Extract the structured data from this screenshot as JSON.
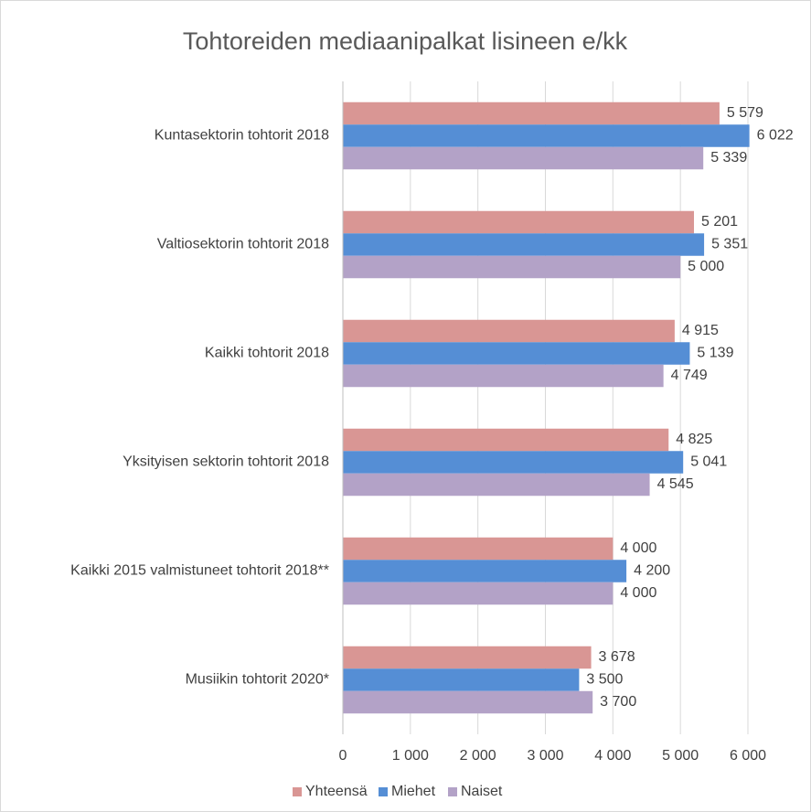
{
  "chart_data": {
    "type": "hbar",
    "title": "Tohtoreiden mediaanipalkat lisineen e/kk",
    "categories": [
      "Kuntasektorin tohtorit 2018",
      "Valtiosektorin tohtorit  2018",
      "Kaikki tohtorit 2018",
      "Yksityisen sektorin tohtorit 2018",
      "Kaikki 2015 valmistuneet tohtorit 2018**",
      "Musiikin tohtorit 2020*"
    ],
    "series": [
      {
        "name": "Yhteensä",
        "color": "#d99694",
        "values": [
          5579,
          5201,
          4915,
          4825,
          4000,
          3678
        ],
        "value_labels": [
          "5 579",
          "5 201",
          "4 915",
          "4 825",
          "4 000",
          "3 678"
        ]
      },
      {
        "name": "Miehet",
        "color": "#558ed5",
        "values": [
          6022,
          5351,
          5139,
          5041,
          4200,
          3500
        ],
        "value_labels": [
          "6 022",
          "5 351",
          "5 139",
          "5 041",
          "4 200",
          "3 500"
        ]
      },
      {
        "name": "Naiset",
        "color": "#b3a2c7",
        "values": [
          5339,
          5000,
          4749,
          4545,
          4000,
          3700
        ],
        "value_labels": [
          "5 339",
          "5 000",
          "4 749",
          "4 545",
          "4 000",
          "3 700"
        ]
      }
    ],
    "xlim": [
      0,
      6000
    ],
    "xticks": [
      0,
      {
        "value": 1000,
        "label": "1 000"
      },
      {
        "value": 2000,
        "label": "2 000"
      },
      {
        "value": 3000,
        "label": "3 000"
      },
      {
        "value": 4000,
        "label": "4 000"
      },
      {
        "value": 5000,
        "label": "5 000"
      },
      {
        "value": 6000,
        "label": "6 000"
      }
    ],
    "grid": true,
    "legend": "bottom"
  }
}
